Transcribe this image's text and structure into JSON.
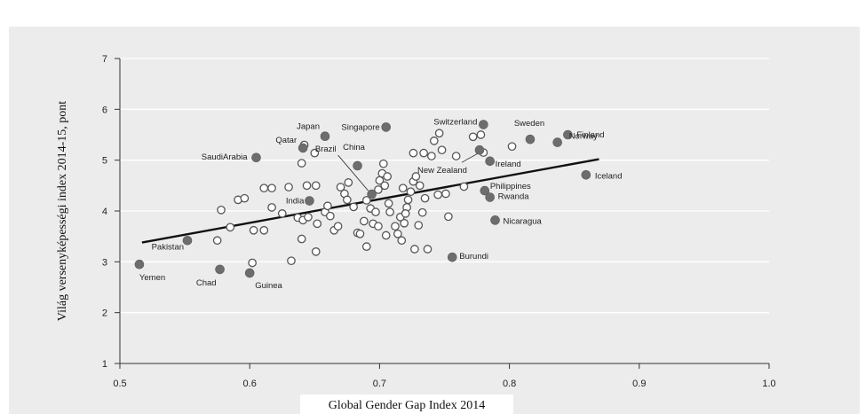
{
  "chart_data": {
    "type": "scatter",
    "xlabel": "Global Gender Gap Index 2014",
    "ylabel": "Világ versenyképességi index 2014‑15, pont",
    "xlim": [
      0.5,
      1.0
    ],
    "ylim": [
      1,
      7
    ],
    "xticks": [
      "0.5",
      "0.6",
      "0.7",
      "0.8",
      "0.9",
      "1.0"
    ],
    "yticks": [
      "1",
      "2",
      "3",
      "4",
      "5",
      "6",
      "7"
    ],
    "grid": "horizontal",
    "trendline": {
      "x": [
        0.517,
        0.869
      ],
      "y": [
        3.38,
        5.02
      ]
    },
    "labeled_points": [
      {
        "name": "Yemen",
        "x": 0.515,
        "y": 2.95
      },
      {
        "name": "Pakistan",
        "x": 0.552,
        "y": 3.42
      },
      {
        "name": "Chad",
        "x": 0.577,
        "y": 2.85
      },
      {
        "name": "Guinea",
        "x": 0.6,
        "y": 2.78
      },
      {
        "name": "SaudiArabia",
        "x": 0.605,
        "y": 5.05
      },
      {
        "name": "India",
        "x": 0.646,
        "y": 4.2
      },
      {
        "name": "Qatar",
        "x": 0.641,
        "y": 5.24
      },
      {
        "name": "Japan",
        "x": 0.658,
        "y": 5.47
      },
      {
        "name": "China",
        "x": 0.683,
        "y": 4.89
      },
      {
        "name": "Brazil",
        "x": 0.694,
        "y": 4.33
      },
      {
        "name": "Singapore",
        "x": 0.705,
        "y": 5.65
      },
      {
        "name": "Switzerland",
        "x": 0.78,
        "y": 5.7
      },
      {
        "name": "New Zealand",
        "x": 0.777,
        "y": 5.2
      },
      {
        "name": "Ireland",
        "x": 0.785,
        "y": 4.98
      },
      {
        "name": "Philippines",
        "x": 0.781,
        "y": 4.4
      },
      {
        "name": "Rwanda",
        "x": 0.785,
        "y": 4.27
      },
      {
        "name": "Nicaragua",
        "x": 0.789,
        "y": 3.82
      },
      {
        "name": "Burundi",
        "x": 0.756,
        "y": 3.09
      },
      {
        "name": "Sweden",
        "x": 0.816,
        "y": 5.41
      },
      {
        "name": "Norway",
        "x": 0.837,
        "y": 5.35
      },
      {
        "name": "Finland",
        "x": 0.845,
        "y": 5.5
      },
      {
        "name": "Iceland",
        "x": 0.859,
        "y": 4.71
      }
    ],
    "other_points": [
      [
        0.578,
        4.02
      ],
      [
        0.575,
        3.42
      ],
      [
        0.585,
        3.68
      ],
      [
        0.591,
        4.22
      ],
      [
        0.596,
        4.25
      ],
      [
        0.603,
        3.62
      ],
      [
        0.611,
        4.45
      ],
      [
        0.617,
        4.45
      ],
      [
        0.602,
        2.98
      ],
      [
        0.611,
        3.62
      ],
      [
        0.617,
        4.07
      ],
      [
        0.625,
        3.95
      ],
      [
        0.63,
        4.47
      ],
      [
        0.632,
        3.02
      ],
      [
        0.637,
        3.87
      ],
      [
        0.641,
        3.82
      ],
      [
        0.64,
        3.45
      ],
      [
        0.645,
        3.88
      ],
      [
        0.651,
        3.2
      ],
      [
        0.652,
        3.75
      ],
      [
        0.644,
        4.5
      ],
      [
        0.651,
        4.5
      ],
      [
        0.64,
        4.94
      ],
      [
        0.65,
        5.14
      ],
      [
        0.642,
        5.3
      ],
      [
        0.658,
        3.98
      ],
      [
        0.662,
        3.9
      ],
      [
        0.665,
        3.62
      ],
      [
        0.67,
        4.47
      ],
      [
        0.673,
        4.34
      ],
      [
        0.675,
        4.22
      ],
      [
        0.676,
        4.56
      ],
      [
        0.68,
        4.08
      ],
      [
        0.683,
        3.57
      ],
      [
        0.688,
        3.8
      ],
      [
        0.69,
        4.21
      ],
      [
        0.693,
        4.05
      ],
      [
        0.697,
        3.98
      ],
      [
        0.699,
        4.42
      ],
      [
        0.7,
        4.6
      ],
      [
        0.702,
        4.74
      ],
      [
        0.704,
        4.5
      ],
      [
        0.706,
        4.68
      ],
      [
        0.707,
        4.15
      ],
      [
        0.708,
        3.98
      ],
      [
        0.712,
        3.7
      ],
      [
        0.714,
        3.55
      ],
      [
        0.717,
        3.42
      ],
      [
        0.719,
        3.76
      ],
      [
        0.721,
        4.07
      ],
      [
        0.722,
        4.22
      ],
      [
        0.724,
        4.38
      ],
      [
        0.726,
        4.58
      ],
      [
        0.727,
        3.25
      ],
      [
        0.731,
        4.5
      ],
      [
        0.733,
        3.97
      ],
      [
        0.735,
        4.25
      ],
      [
        0.737,
        3.25
      ],
      [
        0.74,
        5.08
      ],
      [
        0.742,
        5.38
      ],
      [
        0.745,
        4.32
      ],
      [
        0.746,
        5.53
      ],
      [
        0.748,
        5.2
      ],
      [
        0.751,
        4.34
      ],
      [
        0.753,
        3.89
      ],
      [
        0.759,
        5.08
      ],
      [
        0.765,
        4.48
      ],
      [
        0.772,
        5.46
      ],
      [
        0.778,
        5.5
      ],
      [
        0.78,
        5.15
      ],
      [
        0.802,
        5.27
      ],
      [
        0.728,
        4.68
      ],
      [
        0.695,
        3.75
      ],
      [
        0.69,
        3.3
      ],
      [
        0.685,
        3.55
      ],
      [
        0.705,
        3.52
      ],
      [
        0.699,
        3.7
      ],
      [
        0.716,
        3.88
      ],
      [
        0.73,
        3.72
      ],
      [
        0.703,
        4.93
      ],
      [
        0.66,
        4.1
      ],
      [
        0.668,
        3.7
      ],
      [
        0.72,
        3.95
      ],
      [
        0.726,
        5.14
      ],
      [
        0.734,
        5.14
      ],
      [
        0.718,
        4.45
      ]
    ]
  }
}
